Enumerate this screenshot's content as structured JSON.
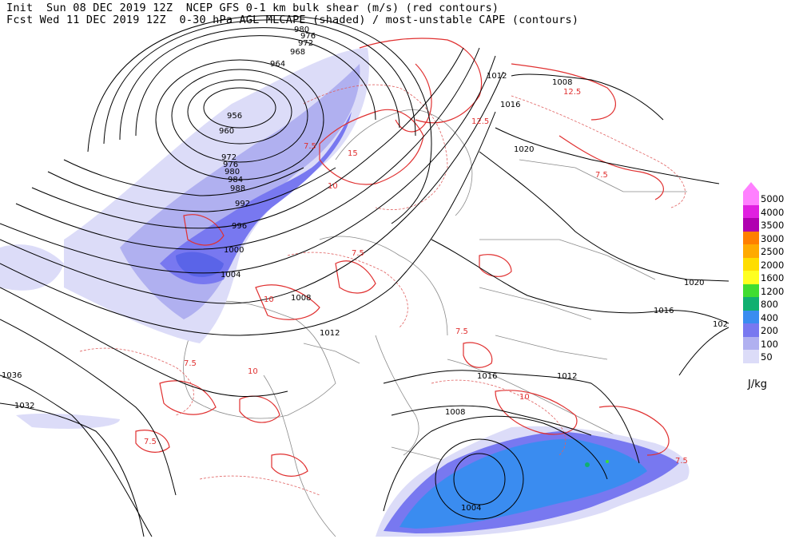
{
  "header": {
    "line1": "Init  Sun 08 DEC 2019 12Z  NCEP GFS 0-1 km bulk shear (m/s) (red contours)",
    "line2": "Fcst Wed 11 DEC 2019 12Z  0-30 hPa AGL MLCAPE (shaded) / most-unstable CAPE (contours)"
  },
  "legend": {
    "levels": [
      {
        "value": "5000",
        "color": "#ff80ff"
      },
      {
        "value": "4000",
        "color": "#e020e0"
      },
      {
        "value": "3500",
        "color": "#b000b0"
      },
      {
        "value": "3000",
        "color": "#ff7f00"
      },
      {
        "value": "2500",
        "color": "#ffaa00"
      },
      {
        "value": "2000",
        "color": "#ffdd00"
      },
      {
        "value": "1600",
        "color": "#ffff20"
      },
      {
        "value": "1200",
        "color": "#40dd30"
      },
      {
        "value": "800",
        "color": "#10b070"
      },
      {
        "value": "400",
        "color": "#3a8cf0"
      },
      {
        "value": "200",
        "color": "#7878f0"
      },
      {
        "value": "100",
        "color": "#b0b0f0"
      },
      {
        "value": "50",
        "color": "#dcdcf8"
      }
    ],
    "units": "J/kg"
  },
  "isobar_labels": [
    {
      "text": "980"
    },
    {
      "text": "976"
    },
    {
      "text": "972"
    },
    {
      "text": "968"
    },
    {
      "text": "964"
    },
    {
      "text": "956"
    },
    {
      "text": "960"
    },
    {
      "text": "972"
    },
    {
      "text": "976"
    },
    {
      "text": "980"
    },
    {
      "text": "984"
    },
    {
      "text": "988"
    },
    {
      "text": "992"
    },
    {
      "text": "996"
    },
    {
      "text": "1000"
    },
    {
      "text": "1004"
    },
    {
      "text": "1008"
    },
    {
      "text": "1012"
    },
    {
      "text": "1012"
    },
    {
      "text": "1008"
    },
    {
      "text": "1016"
    },
    {
      "text": "1020"
    },
    {
      "text": "1020"
    },
    {
      "text": "1016"
    },
    {
      "text": "102"
    },
    {
      "text": "1016"
    },
    {
      "text": "1012"
    },
    {
      "text": "1008"
    },
    {
      "text": "1004"
    },
    {
      "text": "1036"
    },
    {
      "text": "1032"
    }
  ],
  "shear_labels": [
    "7.5",
    "10",
    "12.5",
    "15",
    "7.5",
    "10",
    "7.5",
    "7.5",
    "10",
    "12.5",
    "7.5",
    "10",
    "7.5",
    "7.5"
  ]
}
